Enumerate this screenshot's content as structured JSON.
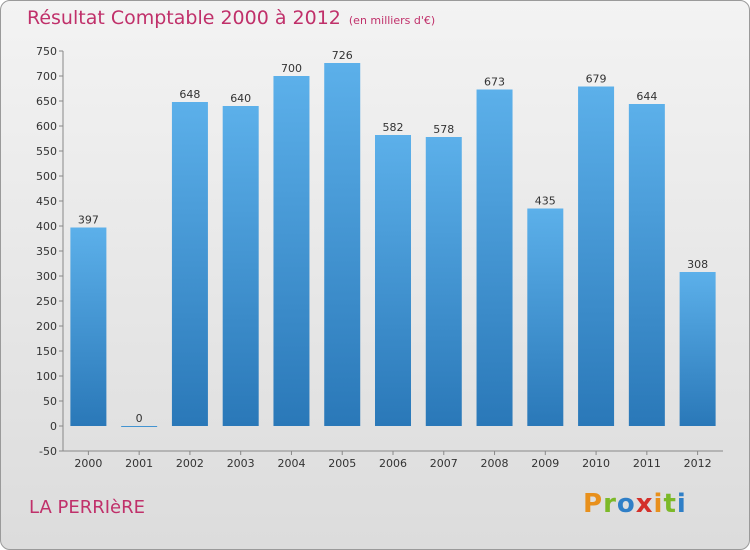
{
  "chart_data": {
    "type": "bar",
    "title": "Résultat Comptable 2000 à 2012",
    "subtitle": "(en milliers d'€)",
    "categories": [
      "2000",
      "2001",
      "2002",
      "2003",
      "2004",
      "2005",
      "2006",
      "2007",
      "2008",
      "2009",
      "2010",
      "2011",
      "2012"
    ],
    "values": [
      397,
      0,
      648,
      640,
      700,
      726,
      582,
      578,
      673,
      435,
      679,
      644,
      308
    ],
    "ylim": [
      -50,
      750
    ],
    "yticks": [
      -50,
      0,
      50,
      100,
      150,
      200,
      250,
      300,
      350,
      400,
      450,
      500,
      550,
      600,
      650,
      700,
      750
    ],
    "grid": false,
    "bar_color": "#3a8fd0",
    "title_color": "#c0306a"
  },
  "footer": {
    "place": "LA PERRIèRE",
    "logo": "Proxiti"
  },
  "colors": {
    "logo_letters": [
      "#e8901c",
      "#7cb928",
      "#2f7fc7",
      "#d4302a",
      "#e8901c",
      "#7cb928",
      "#2f7fc7"
    ]
  }
}
